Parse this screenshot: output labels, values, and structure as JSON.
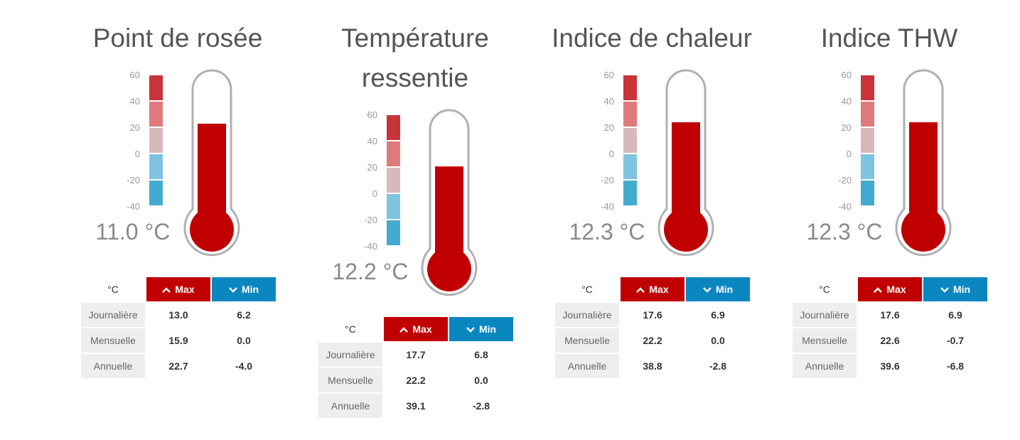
{
  "colors": {
    "accent_max": "#c00000",
    "accent_min": "#0b87c0",
    "mercury": "#c00000",
    "scale_segments": [
      "#c9343a",
      "#df7a7c",
      "#d9b8bd",
      "#7ec4e0",
      "#44abd0"
    ]
  },
  "scale_ticks": [
    "60",
    "40",
    "20",
    "0",
    "-20",
    "-40"
  ],
  "table_headers": {
    "unit": "°C",
    "max": "Max",
    "min": "Min"
  },
  "row_labels": [
    "Journalière",
    "Mensuelle",
    "Annuelle"
  ],
  "panels": [
    {
      "title_lines": [
        "Point de rosée"
      ],
      "current": "11.0 °C",
      "level_percent": 66,
      "rows": [
        {
          "max": "13.0",
          "min": "6.2"
        },
        {
          "max": "15.9",
          "min": "0.0"
        },
        {
          "max": "22.7",
          "min": "-4.0"
        }
      ]
    },
    {
      "title_lines": [
        "Température",
        "ressentie"
      ],
      "current": "12.2 °C",
      "level_percent": 64,
      "rows": [
        {
          "max": "17.7",
          "min": "6.8"
        },
        {
          "max": "22.2",
          "min": "0.0"
        },
        {
          "max": "39.1",
          "min": "-2.8"
        }
      ]
    },
    {
      "title_lines": [
        "Indice de chaleur"
      ],
      "current": "12.3 °C",
      "level_percent": 67,
      "rows": [
        {
          "max": "17.6",
          "min": "6.9"
        },
        {
          "max": "22.2",
          "min": "0.0"
        },
        {
          "max": "38.8",
          "min": "-2.8"
        }
      ]
    },
    {
      "title_lines": [
        "Indice THW"
      ],
      "current": "12.3 °C",
      "level_percent": 67,
      "rows": [
        {
          "max": "17.6",
          "min": "6.9"
        },
        {
          "max": "22.6",
          "min": "-0.7"
        },
        {
          "max": "39.6",
          "min": "-6.8"
        }
      ]
    }
  ]
}
